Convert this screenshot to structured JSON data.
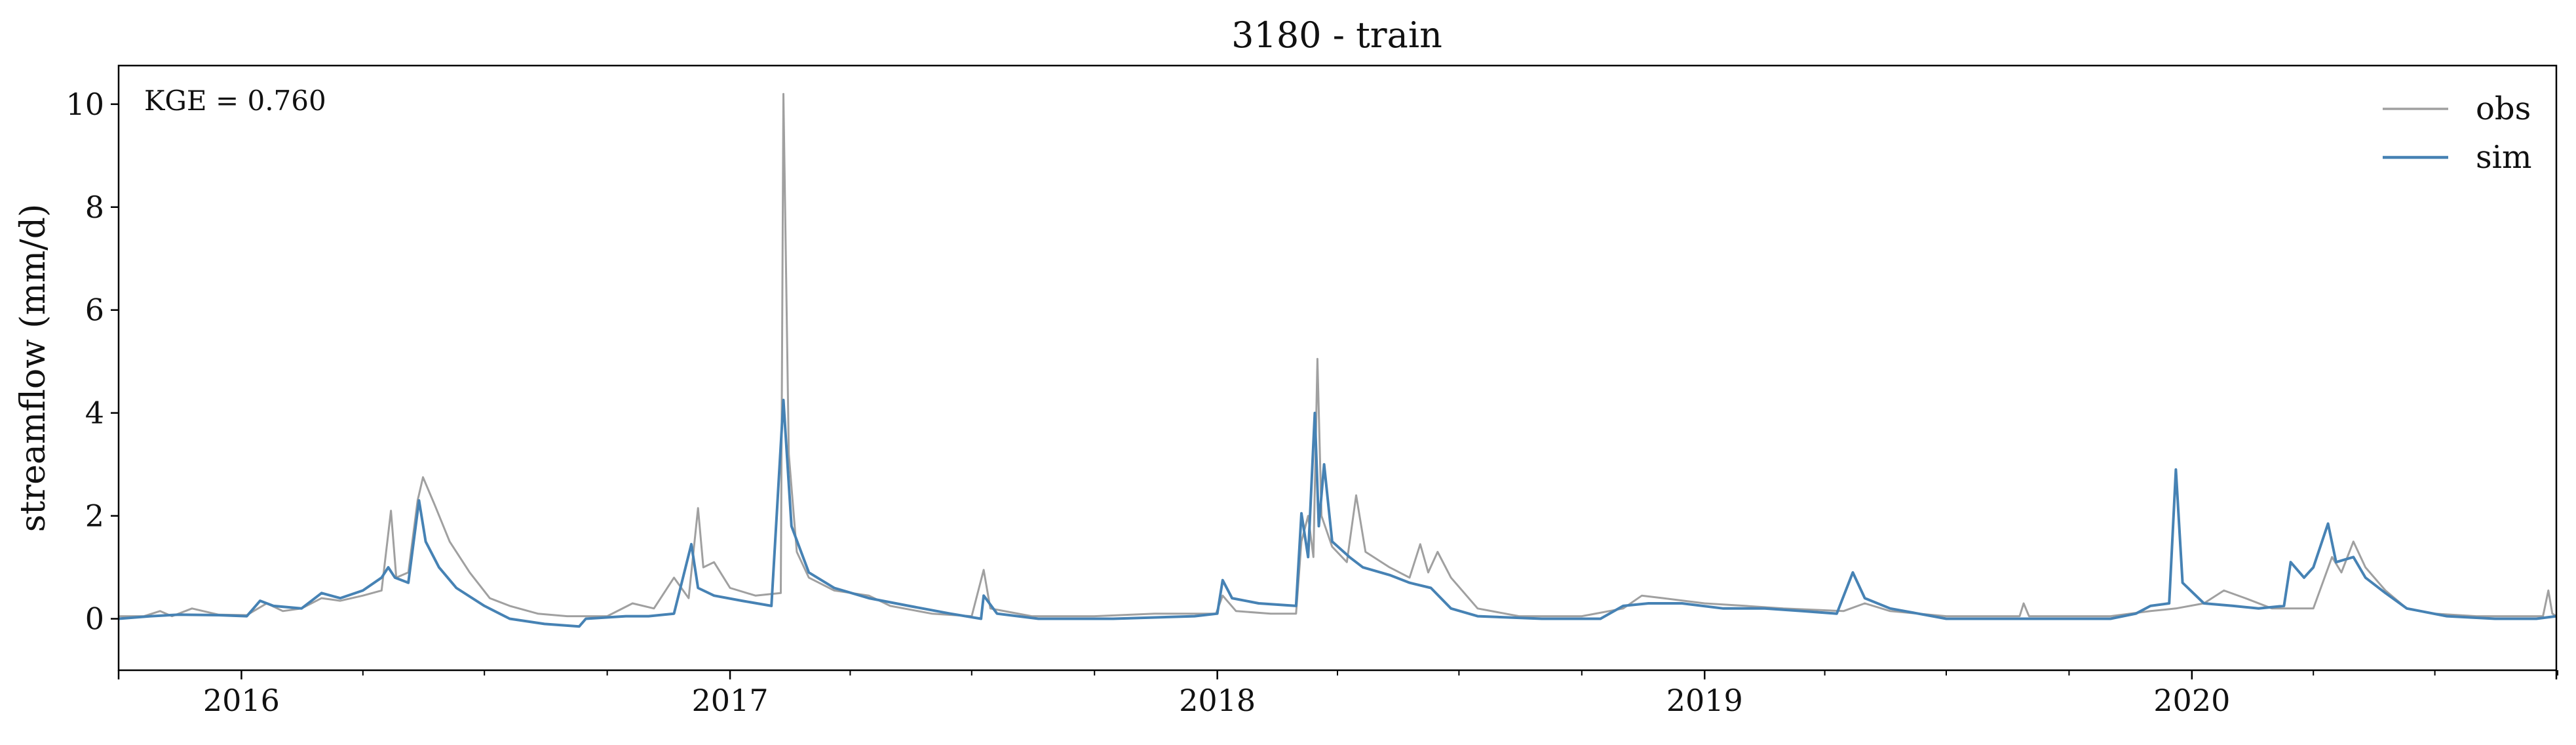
{
  "chart_data": {
    "type": "line",
    "title": "3180 - train",
    "xlabel": "",
    "ylabel": "streamflow (mm/d)",
    "annotation": "KGE = 0.760",
    "xlim": [
      "2015-10-01",
      "2020-09-30"
    ],
    "ylim": [
      -1.0,
      10.75
    ],
    "yticks": [
      0,
      2,
      4,
      6,
      8,
      10
    ],
    "ytick_labels": [
      "0",
      "2",
      "4",
      "6",
      "8",
      "10"
    ],
    "xticks": [
      "2016-01-01",
      "2017-01-01",
      "2018-01-01",
      "2019-01-01",
      "2020-01-01"
    ],
    "xtick_labels": [
      "2016",
      "2017",
      "2018",
      "2019",
      "2020"
    ],
    "grid": false,
    "legend": {
      "location": "top-right",
      "entries": [
        "obs",
        "sim"
      ]
    },
    "series": [
      {
        "name": "obs",
        "color": "#a0a0a0",
        "points": [
          [
            "2015-10-01",
            0.05
          ],
          [
            "2015-10-20",
            0.05
          ],
          [
            "2015-11-01",
            0.15
          ],
          [
            "2015-11-10",
            0.05
          ],
          [
            "2015-11-25",
            0.2
          ],
          [
            "2015-12-15",
            0.08
          ],
          [
            "2016-01-05",
            0.07
          ],
          [
            "2016-01-20",
            0.3
          ],
          [
            "2016-02-01",
            0.15
          ],
          [
            "2016-02-15",
            0.2
          ],
          [
            "2016-03-01",
            0.4
          ],
          [
            "2016-03-15",
            0.35
          ],
          [
            "2016-04-01",
            0.45
          ],
          [
            "2016-04-15",
            0.55
          ],
          [
            "2016-04-22",
            2.1
          ],
          [
            "2016-04-26",
            0.8
          ],
          [
            "2016-05-05",
            0.9
          ],
          [
            "2016-05-12",
            2.3
          ],
          [
            "2016-05-16",
            2.75
          ],
          [
            "2016-05-25",
            2.2
          ],
          [
            "2016-06-05",
            1.5
          ],
          [
            "2016-06-20",
            0.9
          ],
          [
            "2016-07-05",
            0.4
          ],
          [
            "2016-07-20",
            0.25
          ],
          [
            "2016-08-10",
            0.1
          ],
          [
            "2016-09-01",
            0.05
          ],
          [
            "2016-10-01",
            0.05
          ],
          [
            "2016-10-20",
            0.3
          ],
          [
            "2016-11-05",
            0.2
          ],
          [
            "2016-11-20",
            0.8
          ],
          [
            "2016-12-01",
            0.4
          ],
          [
            "2016-12-08",
            2.15
          ],
          [
            "2016-12-12",
            1.0
          ],
          [
            "2016-12-20",
            1.1
          ],
          [
            "2017-01-01",
            0.6
          ],
          [
            "2017-01-20",
            0.45
          ],
          [
            "2017-02-08",
            0.5
          ],
          [
            "2017-02-10",
            10.2
          ],
          [
            "2017-02-14",
            3.2
          ],
          [
            "2017-02-20",
            1.3
          ],
          [
            "2017-03-01",
            0.8
          ],
          [
            "2017-03-20",
            0.55
          ],
          [
            "2017-04-15",
            0.45
          ],
          [
            "2017-05-01",
            0.25
          ],
          [
            "2017-06-01",
            0.1
          ],
          [
            "2017-07-01",
            0.05
          ],
          [
            "2017-07-10",
            0.95
          ],
          [
            "2017-07-15",
            0.2
          ],
          [
            "2017-08-15",
            0.05
          ],
          [
            "2017-10-01",
            0.05
          ],
          [
            "2017-11-15",
            0.1
          ],
          [
            "2017-12-31",
            0.1
          ],
          [
            "2018-01-05",
            0.45
          ],
          [
            "2018-01-15",
            0.15
          ],
          [
            "2018-02-10",
            0.1
          ],
          [
            "2018-03-01",
            0.1
          ],
          [
            "2018-03-05",
            1.5
          ],
          [
            "2018-03-10",
            2.0
          ],
          [
            "2018-03-14",
            1.2
          ],
          [
            "2018-03-17",
            5.05
          ],
          [
            "2018-03-20",
            2.0
          ],
          [
            "2018-03-28",
            1.4
          ],
          [
            "2018-04-08",
            1.1
          ],
          [
            "2018-04-15",
            2.4
          ],
          [
            "2018-04-22",
            1.3
          ],
          [
            "2018-05-10",
            1.0
          ],
          [
            "2018-05-25",
            0.8
          ],
          [
            "2018-06-02",
            1.45
          ],
          [
            "2018-06-08",
            0.9
          ],
          [
            "2018-06-15",
            1.3
          ],
          [
            "2018-06-25",
            0.8
          ],
          [
            "2018-07-15",
            0.2
          ],
          [
            "2018-08-15",
            0.05
          ],
          [
            "2018-10-01",
            0.05
          ],
          [
            "2018-11-01",
            0.2
          ],
          [
            "2018-11-15",
            0.45
          ],
          [
            "2018-12-01",
            0.4
          ],
          [
            "2019-01-01",
            0.3
          ],
          [
            "2019-02-01",
            0.25
          ],
          [
            "2019-03-01",
            0.2
          ],
          [
            "2019-04-15",
            0.15
          ],
          [
            "2019-05-01",
            0.3
          ],
          [
            "2019-05-20",
            0.15
          ],
          [
            "2019-07-01",
            0.05
          ],
          [
            "2019-08-25",
            0.05
          ],
          [
            "2019-08-28",
            0.3
          ],
          [
            "2019-09-01",
            0.05
          ],
          [
            "2019-11-01",
            0.05
          ],
          [
            "2019-12-01",
            0.15
          ],
          [
            "2019-12-20",
            0.2
          ],
          [
            "2020-01-10",
            0.3
          ],
          [
            "2020-01-25",
            0.55
          ],
          [
            "2020-02-10",
            0.4
          ],
          [
            "2020-03-01",
            0.2
          ],
          [
            "2020-04-01",
            0.2
          ],
          [
            "2020-04-15",
            1.2
          ],
          [
            "2020-04-22",
            0.9
          ],
          [
            "2020-05-01",
            1.5
          ],
          [
            "2020-05-10",
            1.0
          ],
          [
            "2020-05-25",
            0.55
          ],
          [
            "2020-06-10",
            0.2
          ],
          [
            "2020-07-01",
            0.1
          ],
          [
            "2020-08-01",
            0.05
          ],
          [
            "2020-09-20",
            0.05
          ],
          [
            "2020-09-24",
            0.55
          ],
          [
            "2020-09-27",
            0.1
          ],
          [
            "2020-09-30",
            0.05
          ]
        ]
      },
      {
        "name": "sim",
        "color": "#4682b4",
        "points": [
          [
            "2015-10-01",
            0.0
          ],
          [
            "2015-10-25",
            0.05
          ],
          [
            "2015-11-15",
            0.08
          ],
          [
            "2015-12-15",
            0.07
          ],
          [
            "2016-01-05",
            0.05
          ],
          [
            "2016-01-15",
            0.35
          ],
          [
            "2016-01-25",
            0.25
          ],
          [
            "2016-02-15",
            0.2
          ],
          [
            "2016-03-01",
            0.5
          ],
          [
            "2016-03-15",
            0.4
          ],
          [
            "2016-04-01",
            0.55
          ],
          [
            "2016-04-15",
            0.8
          ],
          [
            "2016-04-20",
            1.0
          ],
          [
            "2016-04-25",
            0.8
          ],
          [
            "2016-05-05",
            0.7
          ],
          [
            "2016-05-13",
            2.3
          ],
          [
            "2016-05-18",
            1.5
          ],
          [
            "2016-05-28",
            1.0
          ],
          [
            "2016-06-10",
            0.6
          ],
          [
            "2016-07-01",
            0.25
          ],
          [
            "2016-07-20",
            0.0
          ],
          [
            "2016-08-15",
            -0.1
          ],
          [
            "2016-09-10",
            -0.15
          ],
          [
            "2016-09-15",
            0.0
          ],
          [
            "2016-10-15",
            0.05
          ],
          [
            "2016-11-01",
            0.05
          ],
          [
            "2016-11-20",
            0.1
          ],
          [
            "2016-12-03",
            1.45
          ],
          [
            "2016-12-08",
            0.6
          ],
          [
            "2016-12-20",
            0.45
          ],
          [
            "2017-01-10",
            0.35
          ],
          [
            "2017-02-01",
            0.25
          ],
          [
            "2017-02-10",
            4.25
          ],
          [
            "2017-02-16",
            1.8
          ],
          [
            "2017-03-01",
            0.9
          ],
          [
            "2017-03-20",
            0.6
          ],
          [
            "2017-04-15",
            0.4
          ],
          [
            "2017-05-15",
            0.25
          ],
          [
            "2017-06-15",
            0.1
          ],
          [
            "2017-07-08",
            0.0
          ],
          [
            "2017-07-10",
            0.45
          ],
          [
            "2017-07-20",
            0.1
          ],
          [
            "2017-08-20",
            0.0
          ],
          [
            "2017-10-15",
            0.0
          ],
          [
            "2017-12-15",
            0.05
          ],
          [
            "2018-01-01",
            0.1
          ],
          [
            "2018-01-05",
            0.75
          ],
          [
            "2018-01-12",
            0.4
          ],
          [
            "2018-02-01",
            0.3
          ],
          [
            "2018-03-01",
            0.25
          ],
          [
            "2018-03-05",
            2.05
          ],
          [
            "2018-03-10",
            1.2
          ],
          [
            "2018-03-15",
            4.0
          ],
          [
            "2018-03-18",
            1.8
          ],
          [
            "2018-03-22",
            3.0
          ],
          [
            "2018-03-28",
            1.5
          ],
          [
            "2018-04-10",
            1.2
          ],
          [
            "2018-04-20",
            1.0
          ],
          [
            "2018-05-10",
            0.85
          ],
          [
            "2018-05-25",
            0.7
          ],
          [
            "2018-06-10",
            0.6
          ],
          [
            "2018-06-25",
            0.2
          ],
          [
            "2018-07-15",
            0.05
          ],
          [
            "2018-09-01",
            0.0
          ],
          [
            "2018-10-15",
            0.0
          ],
          [
            "2018-11-01",
            0.25
          ],
          [
            "2018-11-20",
            0.3
          ],
          [
            "2018-12-15",
            0.3
          ],
          [
            "2019-01-15",
            0.2
          ],
          [
            "2019-02-15",
            0.2
          ],
          [
            "2019-03-15",
            0.15
          ],
          [
            "2019-04-10",
            0.1
          ],
          [
            "2019-04-22",
            0.9
          ],
          [
            "2019-05-01",
            0.4
          ],
          [
            "2019-05-20",
            0.2
          ],
          [
            "2019-07-01",
            0.0
          ],
          [
            "2019-09-01",
            0.0
          ],
          [
            "2019-11-01",
            0.0
          ],
          [
            "2019-11-20",
            0.1
          ],
          [
            "2019-12-01",
            0.25
          ],
          [
            "2019-12-15",
            0.3
          ],
          [
            "2019-12-20",
            2.9
          ],
          [
            "2019-12-25",
            0.7
          ],
          [
            "2020-01-10",
            0.3
          ],
          [
            "2020-02-01",
            0.25
          ],
          [
            "2020-02-20",
            0.2
          ],
          [
            "2020-03-10",
            0.25
          ],
          [
            "2020-03-15",
            1.1
          ],
          [
            "2020-03-25",
            0.8
          ],
          [
            "2020-04-01",
            1.0
          ],
          [
            "2020-04-12",
            1.85
          ],
          [
            "2020-04-18",
            1.1
          ],
          [
            "2020-05-01",
            1.2
          ],
          [
            "2020-05-10",
            0.8
          ],
          [
            "2020-05-25",
            0.5
          ],
          [
            "2020-06-10",
            0.2
          ],
          [
            "2020-07-10",
            0.05
          ],
          [
            "2020-08-15",
            0.0
          ],
          [
            "2020-09-15",
            0.0
          ],
          [
            "2020-09-30",
            0.05
          ]
        ]
      }
    ]
  }
}
